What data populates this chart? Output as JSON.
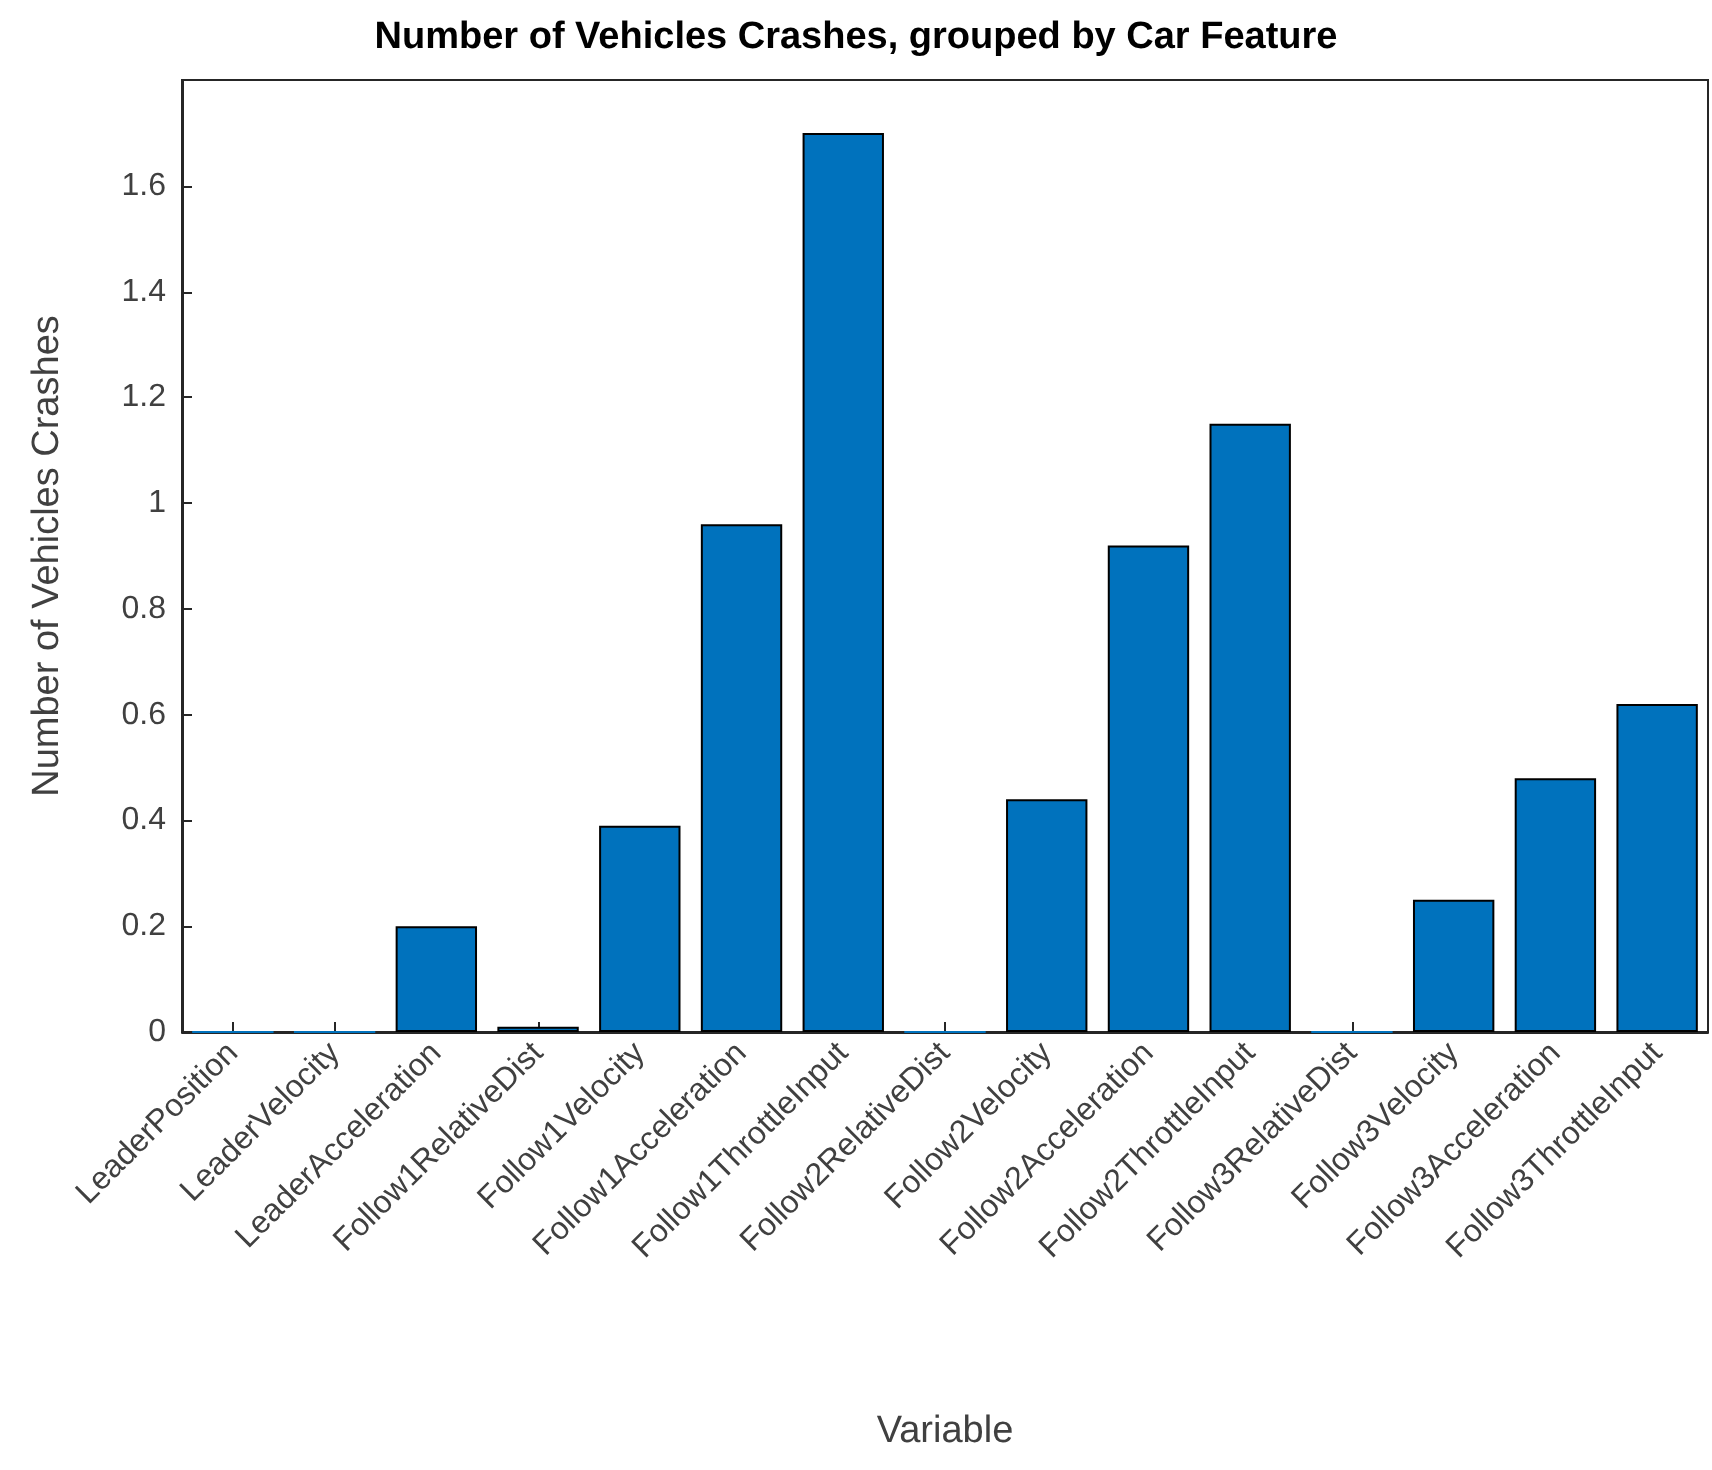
{
  "chart_data": {
    "type": "bar",
    "title": "Number of Vehicles Crashes, grouped by Car Feature",
    "xlabel": "Variable",
    "ylabel": "Number of Vehicles Crashes",
    "categories": [
      "LeaderPosition",
      "LeaderVelocity",
      "LeaderAcceleration",
      "Follow1RelativeDist",
      "Follow1Velocity",
      "Follow1Acceleration",
      "Follow1ThrottleInput",
      "Follow2RelativeDist",
      "Follow2Velocity",
      "Follow2Acceleration",
      "Follow2ThrottleInput",
      "Follow3RelativeDist",
      "Follow3Velocity",
      "Follow3Acceleration",
      "Follow3ThrottleInput"
    ],
    "values": [
      0,
      0,
      0.2,
      0.01,
      0.39,
      0.96,
      1.7,
      0,
      0.44,
      0.92,
      1.15,
      0,
      0.25,
      0.48,
      0.62
    ],
    "color": "#0072bd",
    "ylim": [
      0,
      1.8
    ],
    "yticks": [
      0,
      0.2,
      0.4,
      0.6,
      0.8,
      1,
      1.2,
      1.4,
      1.6
    ],
    "grid": false
  }
}
